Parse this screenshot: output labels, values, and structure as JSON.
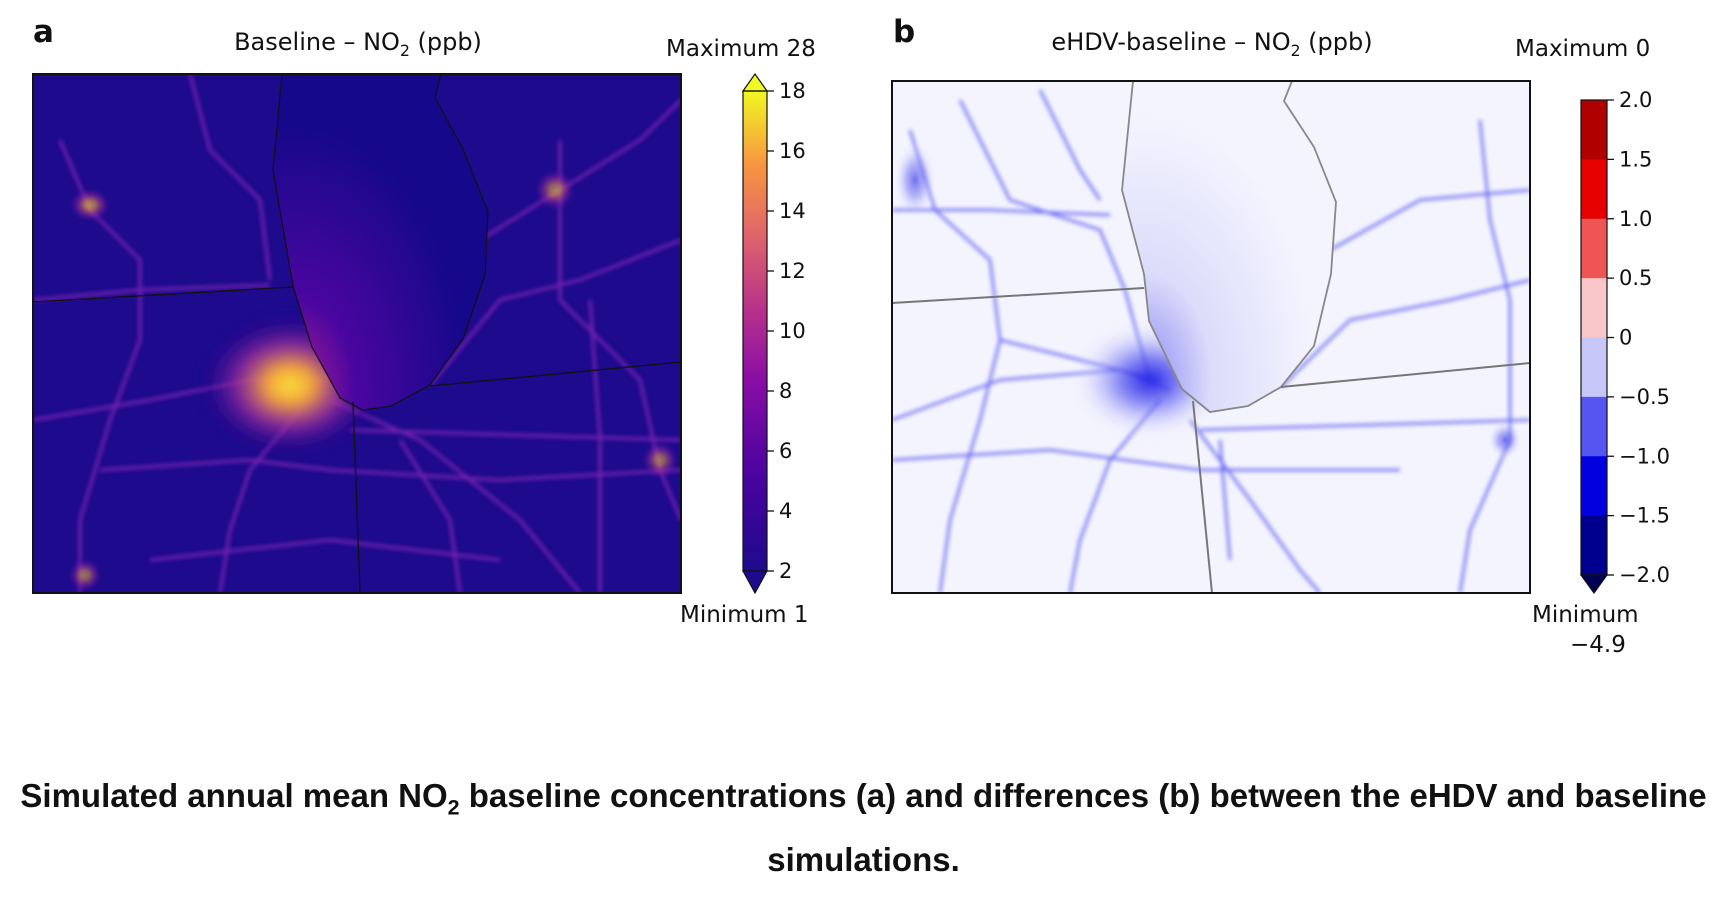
{
  "panels": [
    {
      "letter": "a",
      "title_prefix": "Baseline – NO",
      "title_sub": "2",
      "title_suffix": " (ppb)",
      "max_label": "Maximum 28",
      "min_label": "Minimum 1",
      "colormap": "plasma",
      "colorbar_ticks": [
        "18",
        "16",
        "14",
        "12",
        "10",
        "8",
        "6",
        "4",
        "2"
      ]
    },
    {
      "letter": "b",
      "title_prefix": "eHDV-baseline – NO",
      "title_sub": "2",
      "title_suffix": " (ppb)",
      "max_label": "Maximum 0",
      "min_label": "Minimum",
      "min_value": "−4.9",
      "colormap": "blue-white-red (discrete)",
      "colorbar_ticks": [
        "2.0",
        "1.5",
        "1.0",
        "0.5",
        "0",
        "−0.5",
        "−1.0",
        "−1.5",
        "−2.0"
      ],
      "bin_colors": [
        "#b00000",
        "#e60000",
        "#f05555",
        "#f8c6c6",
        "#c6c6f8",
        "#5555f2",
        "#0000e0",
        "#00008e"
      ]
    }
  ],
  "caption": {
    "prefix": "Simulated annual mean NO",
    "sub": "2",
    "suffix": " baseline concentrations (a) and differences (b) between the eHDV and baseline simulations."
  },
  "chart_data": [
    {
      "type": "heatmap",
      "title": "Baseline – NO2 (ppb)",
      "colorbar_range": [
        2,
        18
      ],
      "extend": "both",
      "max": 28,
      "min": 1
    },
    {
      "type": "heatmap",
      "title": "eHDV-baseline – NO2 (ppb)",
      "colorbar_range": [
        -2.0,
        2.0
      ],
      "extend": "min",
      "max": 0,
      "min": -4.9
    }
  ]
}
